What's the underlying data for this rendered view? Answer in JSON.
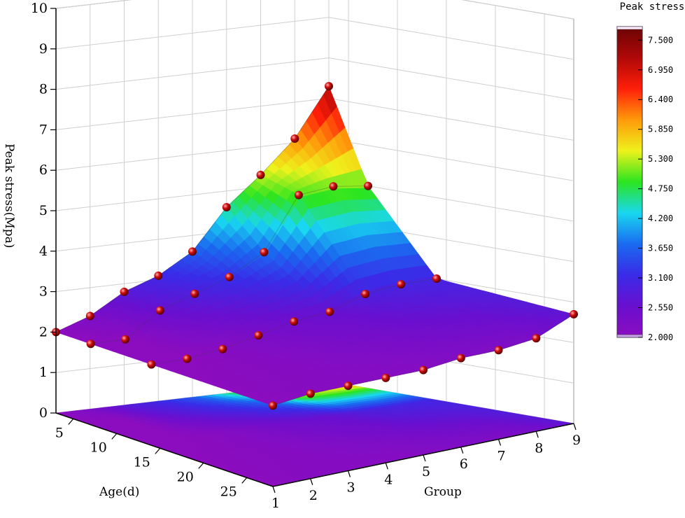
{
  "chart_data": {
    "type": "surface3d",
    "title": "",
    "x": {
      "label": "Age(d)",
      "ticks": [
        "5",
        "10",
        "15",
        "20",
        "25"
      ],
      "tick_values": [
        5,
        10,
        15,
        20,
        25
      ],
      "range": [
        3,
        28
      ]
    },
    "y": {
      "label": "Group",
      "ticks": [
        "1",
        "2",
        "3",
        "4",
        "5",
        "6",
        "7",
        "8",
        "9"
      ],
      "tick_values": [
        1,
        2,
        3,
        4,
        5,
        6,
        7,
        8,
        9
      ],
      "range": [
        1,
        9
      ]
    },
    "z": {
      "label": "Peak stress(Mpa)",
      "ticks": [
        "0",
        "1",
        "2",
        "3",
        "4",
        "5",
        "6",
        "7",
        "8",
        "9",
        "10"
      ],
      "tick_values": [
        0,
        1,
        2,
        3,
        4,
        5,
        6,
        7,
        8,
        9,
        10
      ],
      "range": [
        0,
        10
      ]
    },
    "ages": [
      3,
      7,
      14,
      28
    ],
    "groups": [
      1,
      2,
      3,
      4,
      5,
      6,
      7,
      8,
      9
    ],
    "peak_stress": [
      [
        2.0,
        2.3,
        2.8,
        3.1,
        3.6,
        4.6,
        5.3,
        6.1,
        7.3
      ],
      [
        2.0,
        2.0,
        2.6,
        2.9,
        3.2,
        3.7,
        5.0,
        5.1,
        5.0
      ],
      [
        2.0,
        2.0,
        2.1,
        2.3,
        2.5,
        2.6,
        2.9,
        3.0,
        3.0
      ],
      [
        2.0,
        2.1,
        2.1,
        2.1,
        2.1,
        2.2,
        2.2,
        2.3,
        2.7
      ]
    ],
    "colorbar": {
      "title": "Peak stress",
      "ticks": [
        "2.000",
        "2.550",
        "3.100",
        "3.650",
        "4.200",
        "4.750",
        "5.300",
        "5.850",
        "6.400",
        "6.950",
        "7.500"
      ],
      "range": [
        2.0,
        7.75
      ]
    },
    "colors": {
      "stops": [
        "#8c0dbf",
        "#6a0fcf",
        "#3a2be8",
        "#1a6af0",
        "#19d7f0",
        "#2be51f",
        "#eef21c",
        "#ff9a0a",
        "#ff1f0a",
        "#b00808",
        "#6a0505"
      ],
      "marker": "#d11010",
      "grid": "#cfcfcf"
    },
    "grid": true
  }
}
